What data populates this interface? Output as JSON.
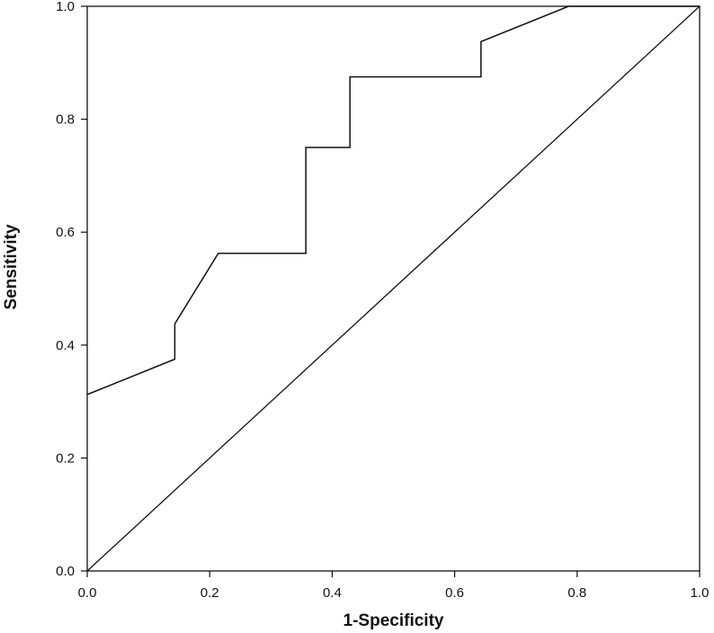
{
  "chart_data": {
    "type": "line",
    "xlabel": "1-Specificity",
    "ylabel": "Sensitivity",
    "xlim": [
      0,
      1
    ],
    "ylim": [
      0,
      1
    ],
    "x_ticks": [
      "0.0",
      "0.2",
      "0.4",
      "0.6",
      "0.8",
      "1.0"
    ],
    "y_ticks": [
      "0.0",
      "0.2",
      "0.4",
      "0.6",
      "0.8",
      "1.0"
    ],
    "grid": false,
    "series": [
      {
        "x": [
          0,
          0.143,
          0.143,
          0.214,
          0.357,
          0.357,
          0.429,
          0.429,
          0.643,
          0.643,
          0.786,
          1.0
        ],
        "y": [
          0.3125,
          0.375,
          0.4375,
          0.5625,
          0.5625,
          0.75,
          0.75,
          0.875,
          0.875,
          0.9375,
          1.0,
          1.0
        ],
        "color": "#111111"
      },
      {
        "x": [
          0,
          1
        ],
        "y": [
          0,
          1
        ],
        "color": "#111111"
      }
    ]
  }
}
